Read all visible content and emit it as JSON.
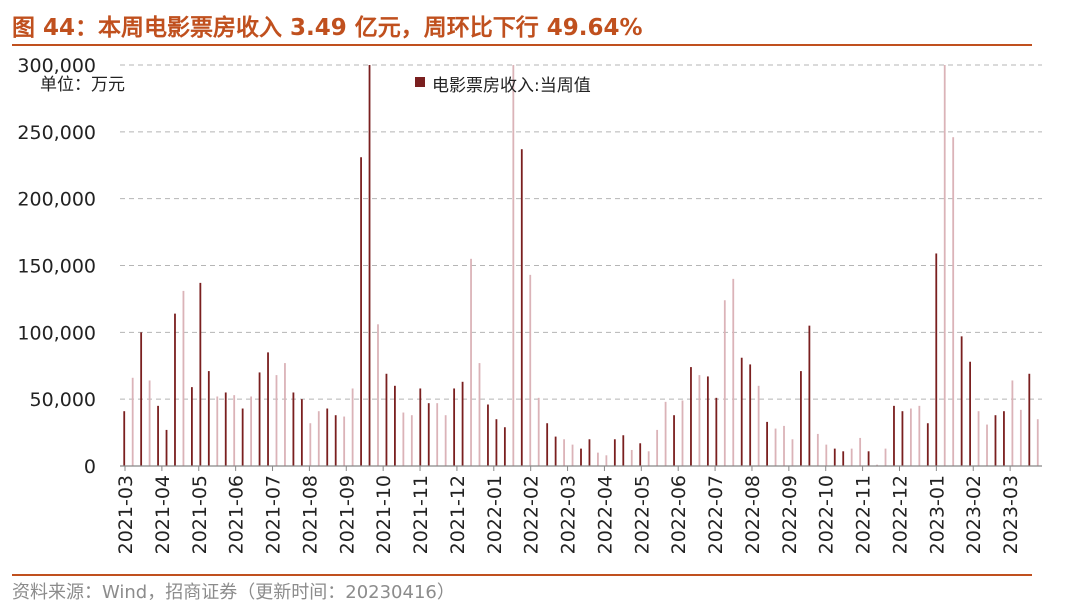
{
  "title": "图 44：本周电影票房收入 3.49 亿元，周环比下行 49.64%",
  "source": "资料来源：Wind，招商证券（更新时间：20230416）",
  "colors": {
    "accent": "#c0501e",
    "bar_dark": "#7a1f1f",
    "bar_light": "#dbb3b8",
    "grid": "#b5b5b5"
  },
  "chart_data": {
    "type": "bar",
    "unit_label": "单位：万元",
    "legend": [
      {
        "name": "电影票房收入:当周值",
        "color": "#7a1f1f"
      }
    ],
    "legend_position": "top-center",
    "ylim": [
      0,
      300000
    ],
    "yticks": [
      "0",
      "50,000",
      "100,000",
      "150,000",
      "200,000",
      "250,000",
      "300,000"
    ],
    "grid": true,
    "xtick_labels": [
      "2021-03",
      "2021-04",
      "2021-05",
      "2021-06",
      "2021-07",
      "2021-08",
      "2021-09",
      "2021-10",
      "2021-11",
      "2021-12",
      "2022-01",
      "2022-02",
      "2022-03",
      "2022-04",
      "2022-05",
      "2022-06",
      "2022-07",
      "2022-08",
      "2022-09",
      "2022-10",
      "2022-11",
      "2022-12",
      "2023-01",
      "2023-02",
      "2023-03"
    ],
    "values": [
      41000,
      66000,
      100000,
      64000,
      45000,
      27000,
      114000,
      131000,
      59000,
      137000,
      71000,
      52000,
      55000,
      53000,
      43000,
      52000,
      70000,
      85000,
      68000,
      77000,
      55000,
      50000,
      32000,
      41000,
      43000,
      38000,
      37000,
      58000,
      231000,
      300000,
      106000,
      69000,
      60000,
      40000,
      38000,
      58000,
      47000,
      47000,
      38000,
      58000,
      63000,
      155000,
      77000,
      46000,
      35000,
      29000,
      300000,
      237000,
      143000,
      51000,
      32000,
      22000,
      20000,
      16000,
      13000,
      20000,
      10000,
      8000,
      20000,
      23000,
      12000,
      17000,
      11000,
      27000,
      48000,
      38000,
      49000,
      74000,
      68000,
      67000,
      51000,
      124000,
      140000,
      81000,
      76000,
      60000,
      33000,
      28000,
      30000,
      20000,
      71000,
      105000,
      24000,
      16000,
      13000,
      11000,
      13000,
      21000,
      11000,
      1000,
      13000,
      45000,
      41000,
      43000,
      45000,
      32000,
      159000,
      300000,
      246000,
      97000,
      78000,
      41000,
      31000,
      38000,
      41000,
      64000,
      42000,
      69000,
      35000
    ],
    "tones": [
      1,
      0,
      1,
      0,
      1,
      1,
      1,
      0,
      1,
      1,
      1,
      0,
      1,
      0,
      1,
      0,
      1,
      1,
      0,
      0,
      1,
      1,
      0,
      0,
      1,
      1,
      0,
      0,
      1,
      1,
      0,
      1,
      1,
      0,
      0,
      1,
      1,
      0,
      0,
      1,
      1,
      0,
      0,
      1,
      1,
      1,
      0,
      1,
      0,
      0,
      1,
      1,
      0,
      0,
      1,
      1,
      0,
      0,
      1,
      1,
      0,
      1,
      0,
      0,
      0,
      1,
      0,
      1,
      0,
      1,
      1,
      0,
      0,
      1,
      1,
      0,
      1,
      0,
      0,
      0,
      1,
      1,
      0,
      0,
      1,
      1,
      0,
      0,
      1,
      0,
      0,
      1,
      1,
      0,
      0,
      1,
      1,
      0,
      0,
      1,
      1,
      0,
      0,
      1,
      1,
      0,
      0,
      1,
      0
    ]
  }
}
